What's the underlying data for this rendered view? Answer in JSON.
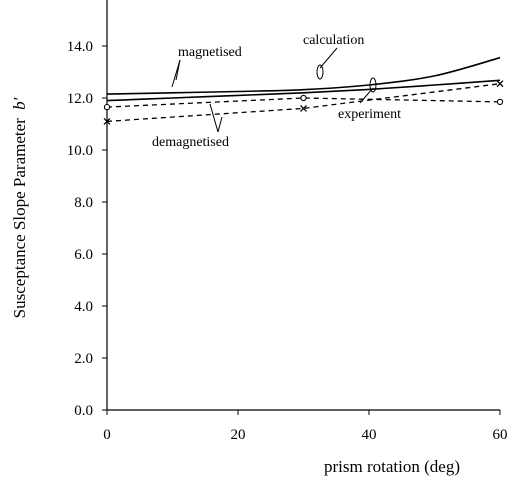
{
  "chart_data": {
    "type": "line",
    "title": "",
    "xlabel": "prism rotation (deg)",
    "ylabel": "Susceptance Slope Parameter",
    "ylabel_symbol": "b′",
    "xlim": [
      0,
      60
    ],
    "ylim": [
      0.0,
      15.0
    ],
    "xticks": [
      0,
      20,
      40,
      60
    ],
    "yticks": [
      0.0,
      2.0,
      4.0,
      6.0,
      8.0,
      10.0,
      12.0,
      14.0
    ],
    "xtick_labels": [
      "0",
      "20",
      "40",
      "60"
    ],
    "ytick_labels": [
      "0.0",
      "2.0",
      "4.0",
      "6.0",
      "8.0",
      "10.0",
      "12.0",
      "14.0"
    ],
    "grid": false,
    "legend": "none",
    "series": [
      {
        "style": "solid",
        "x": [
          0,
          10,
          20,
          30,
          40,
          50,
          60
        ],
        "y": [
          12.15,
          12.2,
          12.25,
          12.32,
          12.5,
          12.85,
          13.55
        ]
      },
      {
        "style": "solid",
        "x": [
          0,
          10,
          20,
          30,
          40,
          50,
          60
        ],
        "y": [
          11.9,
          12.0,
          12.1,
          12.2,
          12.33,
          12.5,
          12.68
        ]
      },
      {
        "style": "dashed",
        "marker": "circle",
        "x": [
          0,
          30,
          60
        ],
        "y": [
          11.65,
          12.0,
          11.85
        ]
      },
      {
        "style": "dashed",
        "marker": "cross",
        "x": [
          0,
          30,
          60
        ],
        "y": [
          11.1,
          11.6,
          12.55
        ]
      }
    ],
    "annotations": [
      "magnetised",
      "demagnetised",
      "calculation",
      "experiment"
    ]
  }
}
